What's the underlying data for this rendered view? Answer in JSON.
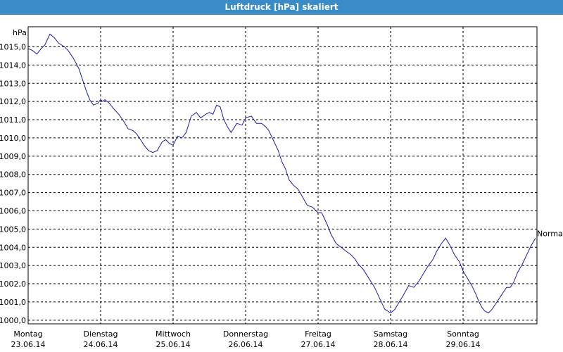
{
  "window": {
    "title": "Luftdruck [hPa] skaliert"
  },
  "chart_data": {
    "type": "line",
    "title": "Luftdruck [hPa] skaliert",
    "ylabel": "hPa",
    "xlabel": "",
    "ylim": [
      999.8,
      1016.1
    ],
    "yticks": [
      "1000,0",
      "1001,0",
      "1002,0",
      "1003,0",
      "1004,0",
      "1005,0",
      "1006,0",
      "1007,0",
      "1008,0",
      "1009,0",
      "1010,0",
      "1011,0",
      "1012,0",
      "1013,0",
      "1014,0",
      "1015,0"
    ],
    "ytick_values": [
      1000,
      1001,
      1002,
      1003,
      1004,
      1005,
      1006,
      1007,
      1008,
      1009,
      1010,
      1011,
      1012,
      1013,
      1014,
      1015
    ],
    "xlim": [
      0,
      7
    ],
    "xticks": [
      {
        "day": "Montag",
        "date": "23.06.14"
      },
      {
        "day": "Dienstag",
        "date": "24.06.14"
      },
      {
        "day": "Mittwoch",
        "date": "25.06.14"
      },
      {
        "day": "Donnerstag",
        "date": "26.06.14"
      },
      {
        "day": "Freitag",
        "date": "27.06.14"
      },
      {
        "day": "Samstag",
        "date": "28.06.14"
      },
      {
        "day": "Sonntag",
        "date": "29.06.14"
      }
    ],
    "grid": true,
    "series": [
      {
        "name": "Normal",
        "color": "#1a1aa6",
        "x": [
          0,
          0.06,
          0.12,
          0.18,
          0.23,
          0.3,
          0.36,
          0.42,
          0.5,
          0.55,
          0.62,
          0.7,
          0.75,
          0.8,
          0.85,
          0.9,
          0.96,
          1.0,
          1.03,
          1.06,
          1.12,
          1.18,
          1.25,
          1.32,
          1.38,
          1.45,
          1.5,
          1.55,
          1.6,
          1.66,
          1.72,
          1.78,
          1.85,
          1.9,
          1.95,
          2.0,
          2.06,
          2.12,
          2.18,
          2.25,
          2.32,
          2.38,
          2.45,
          2.5,
          2.55,
          2.6,
          2.65,
          2.7,
          2.75,
          2.8,
          2.88,
          2.95,
          3.0,
          3.08,
          3.15,
          3.22,
          3.28,
          3.32,
          3.38,
          3.45,
          3.5,
          3.55,
          3.6,
          3.66,
          3.72,
          3.78,
          3.85,
          3.92,
          4.0,
          4.05,
          4.12,
          4.18,
          4.25,
          4.32,
          4.38,
          4.45,
          4.5,
          4.55,
          4.62,
          4.7,
          4.78,
          4.85,
          4.92,
          5.0,
          5.06,
          5.12,
          5.18,
          5.25,
          5.32,
          5.4,
          5.46,
          5.52,
          5.58,
          5.64,
          5.7,
          5.76,
          5.82,
          5.88,
          5.95,
          6.0,
          6.06,
          6.12,
          6.18,
          6.22,
          6.26,
          6.3,
          6.35,
          6.4,
          6.45,
          6.5,
          6.55,
          6.6,
          6.65,
          6.7,
          6.75,
          6.82,
          6.88,
          6.94,
          7.0
        ],
        "values": [
          1014.9,
          1014.8,
          1014.6,
          1014.9,
          1015.1,
          1015.7,
          1015.5,
          1015.2,
          1015.0,
          1014.8,
          1014.4,
          1013.8,
          1013.2,
          1012.6,
          1012.1,
          1011.8,
          1011.9,
          1012.1,
          1012.0,
          1012.1,
          1011.9,
          1011.6,
          1011.3,
          1010.9,
          1010.5,
          1010.4,
          1010.2,
          1009.9,
          1009.6,
          1009.3,
          1009.2,
          1009.3,
          1009.8,
          1009.9,
          1009.7,
          1009.6,
          1010.1,
          1010.0,
          1010.3,
          1011.2,
          1011.4,
          1011.1,
          1011.3,
          1011.4,
          1011.3,
          1011.8,
          1011.7,
          1011.0,
          1010.6,
          1010.3,
          1010.8,
          1010.7,
          1011.1,
          1011.2,
          1010.8,
          1010.8,
          1010.6,
          1010.4,
          1009.9,
          1009.3,
          1008.7,
          1008.3,
          1007.7,
          1007.4,
          1007.2,
          1006.8,
          1006.3,
          1006.2,
          1005.9,
          1005.9,
          1005.3,
          1004.7,
          1004.2,
          1004.0,
          1003.8,
          1003.6,
          1003.4,
          1003.1,
          1002.8,
          1002.3,
          1001.8,
          1001.2,
          1000.6,
          1000.4,
          1000.6,
          1001.0,
          1001.4,
          1001.9,
          1001.8,
          1002.2,
          1002.6,
          1003.0,
          1003.3,
          1003.8,
          1004.2,
          1004.5,
          1004.1,
          1003.6,
          1003.2,
          1002.7,
          1002.3,
          1001.9,
          1001.4,
          1001.0,
          1000.7,
          1000.5,
          1000.4,
          1000.6,
          1000.9,
          1001.2,
          1001.5,
          1001.8,
          1001.8,
          1002.1,
          1002.6,
          1003.1,
          1003.6,
          1004.1,
          1004.5
        ]
      }
    ],
    "series_label": "Normal"
  }
}
